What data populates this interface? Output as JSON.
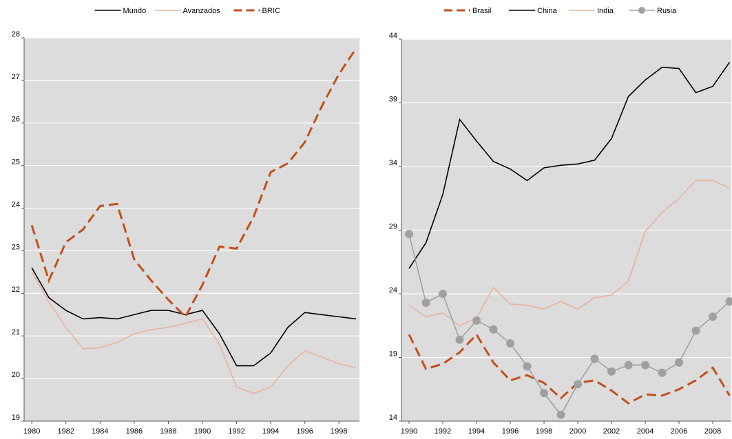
{
  "chart_data": [
    {
      "type": "line",
      "x": [
        1980,
        1981,
        1982,
        1983,
        1984,
        1985,
        1986,
        1987,
        1988,
        1989,
        1990,
        1991,
        1992,
        1993,
        1994,
        1995,
        1996,
        1997,
        1998,
        1999
      ],
      "series": [
        {
          "name": "Mundo",
          "color": "#000000",
          "dashed": false,
          "marker": "none",
          "values": [
            22.6,
            21.9,
            21.6,
            21.4,
            21.43,
            21.4,
            21.5,
            21.6,
            21.6,
            21.5,
            21.6,
            21.05,
            20.3,
            20.3,
            20.6,
            21.2,
            21.55,
            21.5,
            21.45,
            21.4
          ]
        },
        {
          "name": "Avanzados",
          "color": "#e8b39c",
          "dashed": false,
          "marker": "none",
          "values": [
            22.5,
            21.8,
            21.2,
            20.7,
            20.72,
            20.85,
            21.05,
            21.15,
            21.2,
            21.3,
            21.4,
            20.8,
            19.8,
            19.65,
            19.8,
            20.3,
            20.65,
            20.5,
            20.35,
            20.25
          ]
        },
        {
          "name": "BRIC",
          "color": "#c24f1c",
          "dashed": true,
          "marker": "none",
          "values": [
            23.6,
            22.3,
            23.2,
            23.5,
            24.05,
            24.1,
            22.8,
            22.3,
            21.85,
            21.45,
            22.2,
            23.1,
            23.05,
            23.8,
            24.85,
            25.05,
            25.55,
            26.4,
            27.15,
            27.75
          ]
        }
      ],
      "xlim": [
        1979.55,
        1999.2
      ],
      "xticks": [
        1980,
        1982,
        1984,
        1986,
        1988,
        1990,
        1992,
        1994,
        1996,
        1998
      ],
      "ylim": [
        19,
        28
      ],
      "yticks": [
        19,
        20,
        21,
        22,
        23,
        24,
        25,
        26,
        27,
        28
      ],
      "grid": true,
      "legend": "top"
    },
    {
      "type": "line",
      "x": [
        1990,
        1991,
        1992,
        1993,
        1994,
        1995,
        1996,
        1997,
        1998,
        1999,
        2000,
        2001,
        2002,
        2003,
        2004,
        2005,
        2006,
        2007,
        2008,
        2009
      ],
      "series": [
        {
          "name": "Brasil",
          "color": "#c24f1c",
          "dashed": true,
          "marker": "none",
          "values": [
            20.8,
            18.1,
            18.5,
            19.4,
            20.8,
            18.6,
            17.2,
            17.6,
            17,
            15.8,
            17,
            17.2,
            16.4,
            15.4,
            16.1,
            16,
            16.5,
            17.2,
            18.2,
            16
          ]
        },
        {
          "name": "China",
          "color": "#000000",
          "dashed": false,
          "marker": "none",
          "values": [
            26,
            28,
            31.8,
            37.7,
            36,
            34.4,
            33.8,
            32.9,
            33.9,
            34.1,
            34.2,
            34.5,
            36.2,
            39.5,
            40.8,
            41.8,
            41.7,
            39.8,
            40.3,
            42.2
          ]
        },
        {
          "name": "India",
          "color": "#e8b39c",
          "dashed": false,
          "marker": "none",
          "values": [
            23.1,
            22.2,
            22.5,
            21.5,
            22.1,
            24.5,
            23.2,
            23.1,
            22.8,
            23.4,
            22.8,
            23.7,
            23.9,
            25,
            28.9,
            30.4,
            31.5,
            32.9,
            32.9,
            32.3
          ]
        },
        {
          "name": "Rusia",
          "color": "#a0a0a0",
          "dashed": false,
          "marker": "circle",
          "values": [
            28.7,
            23.3,
            24,
            20.4,
            21.9,
            21.2,
            20.1,
            18.3,
            16.2,
            14.5,
            16.9,
            18.9,
            17.9,
            18.4,
            18.4,
            17.8,
            18.6,
            21.1,
            22.2,
            23.4
          ]
        }
      ],
      "xlim": [
        1989.55,
        2009.1
      ],
      "xticks": [
        1990,
        1992,
        1994,
        1996,
        1998,
        2000,
        2002,
        2004,
        2006,
        2008
      ],
      "ylim": [
        14,
        44
      ],
      "yticks": [
        14,
        19,
        24,
        29,
        34,
        39,
        44
      ],
      "grid": true,
      "legend": "top"
    }
  ]
}
